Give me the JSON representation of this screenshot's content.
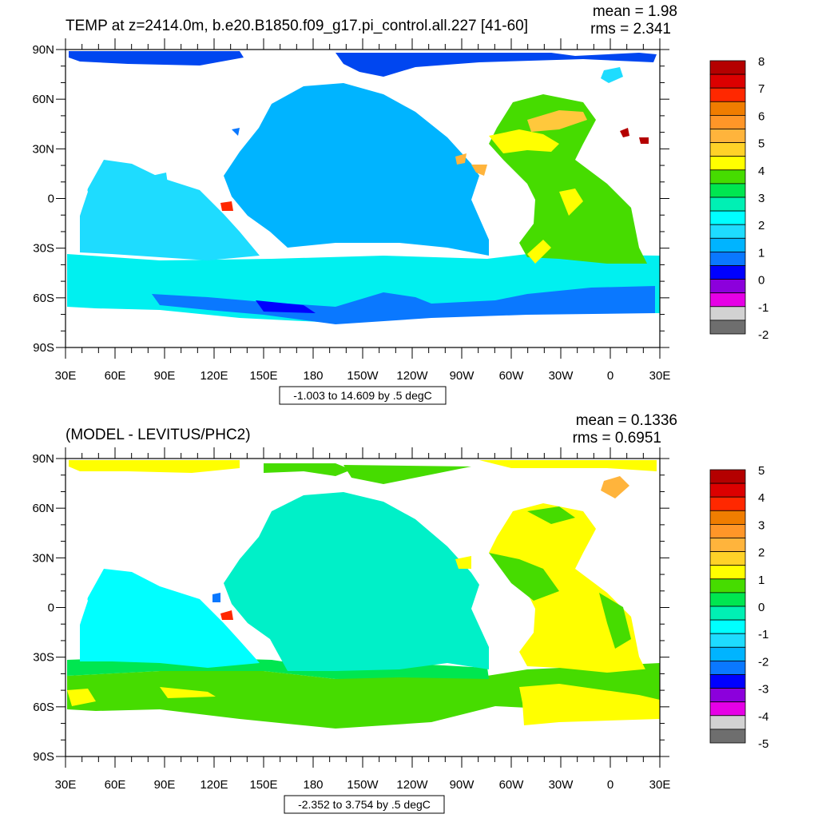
{
  "chart_data": [
    {
      "type": "heatmap",
      "title": "TEMP at z=2414.0m, b.e20.B1850.f09_g17.pi_control.all.227 [41-60]",
      "stats": {
        "mean": "mean = 1.98",
        "rms": "rms = 2.341"
      },
      "x_ticks": [
        "30E",
        "60E",
        "90E",
        "120E",
        "150E",
        "180",
        "150W",
        "120W",
        "90W",
        "60W",
        "30W",
        "0",
        "30E"
      ],
      "y_ticks": [
        "90N",
        "60N",
        "30N",
        "0",
        "30S",
        "60S",
        "90S"
      ],
      "xlim": [
        30,
        390
      ],
      "ylim": [
        -90,
        90
      ],
      "range_label": "-1.003 to 14.609 by .5 degC",
      "colorbar": {
        "labels": [
          "8",
          "7",
          "6",
          "5",
          "4",
          "3",
          "2",
          "1",
          "0",
          "-1",
          "-2"
        ],
        "colors": [
          "#b40000",
          "#dc0000",
          "#ff2800",
          "#f07d00",
          "#ff9628",
          "#ffb43c",
          "#ffd228",
          "#ffff00",
          "#46dc00",
          "#00e650",
          "#00f0b4",
          "#00ffff",
          "#1edcff",
          "#00b4ff",
          "#0a78ff",
          "#0000ff",
          "#8c00dc",
          "#e600e6",
          "#d2d2d2",
          "#6e6e6e"
        ]
      }
    },
    {
      "type": "heatmap",
      "title": "(MODEL - LEVITUS/PHC2)",
      "stats": {
        "mean": "mean = 0.1336",
        "rms": "rms = 0.6951"
      },
      "x_ticks": [
        "30E",
        "60E",
        "90E",
        "120E",
        "150E",
        "180",
        "150W",
        "120W",
        "90W",
        "60W",
        "30W",
        "0",
        "30E"
      ],
      "y_ticks": [
        "90N",
        "60N",
        "30N",
        "0",
        "30S",
        "60S",
        "90S"
      ],
      "xlim": [
        30,
        390
      ],
      "ylim": [
        -90,
        90
      ],
      "range_label": "-2.352 to 3.754 by .5 degC",
      "colorbar": {
        "labels": [
          "5",
          "4",
          "3",
          "2",
          "1",
          "0",
          "-1",
          "-2",
          "-3",
          "-4",
          "-5"
        ],
        "colors": [
          "#b40000",
          "#dc0000",
          "#ff2800",
          "#f07d00",
          "#ff9628",
          "#ffb43c",
          "#ffd228",
          "#ffff00",
          "#46dc00",
          "#00e650",
          "#00f0b4",
          "#00ffff",
          "#1edcff",
          "#00b4ff",
          "#0a78ff",
          "#0000ff",
          "#8c00dc",
          "#e600e6",
          "#d2d2d2",
          "#6e6e6e"
        ]
      }
    }
  ]
}
